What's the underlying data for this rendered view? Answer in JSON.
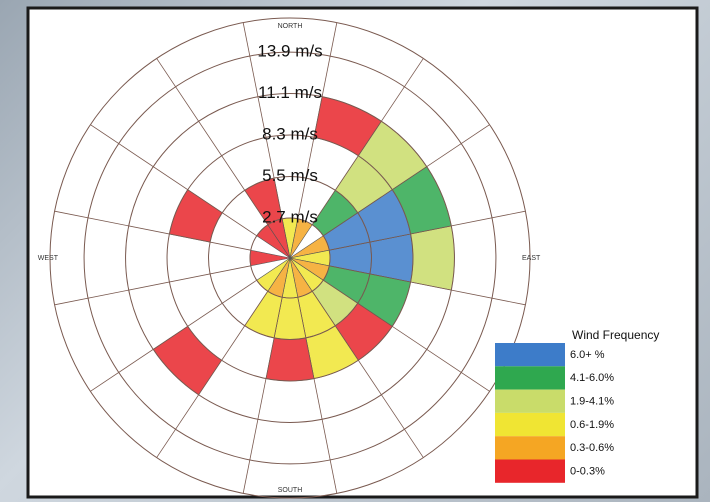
{
  "chart_data": {
    "type": "windrose",
    "rlim": [
      0,
      16.2
    ],
    "ring_ticks": [
      {
        "value": 2.7,
        "label": "2.7 m/s"
      },
      {
        "value": 5.5,
        "label": "5.5 m/s"
      },
      {
        "value": 8.3,
        "label": "8.3 m/s"
      },
      {
        "value": 11.1,
        "label": "11.1 m/s"
      },
      {
        "value": 13.9,
        "label": "13.9 m/s"
      }
    ],
    "sectors": 16,
    "directions": [
      {
        "value": 0,
        "label": "NORTH"
      },
      {
        "value": 90,
        "label": "EAST"
      },
      {
        "value": 180,
        "label": "SOUTH"
      },
      {
        "value": 270,
        "label": "WEST"
      }
    ],
    "legend": {
      "title": "Wind Frequency",
      "corner": "bottom-right"
    },
    "classes": [
      {
        "label": "6.0+ %",
        "color": "#3d7cc9"
      },
      {
        "label": "4.1-6.0%",
        "color": "#2fa84f"
      },
      {
        "label": "1.9-4.1%",
        "color": "#c9dc6a"
      },
      {
        "label": "0.6-1.9%",
        "color": "#f0e533"
      },
      {
        "label": "0.3-0.6%",
        "color": "#f5a623"
      },
      {
        "label": "0-0.3%",
        "color": "#e8262b"
      }
    ],
    "cells": [
      {
        "sector": 4,
        "ring": 1,
        "class": 0
      },
      {
        "sector": 4,
        "ring": 2,
        "class": 0
      },
      {
        "sector": 3,
        "ring": 1,
        "class": 0
      },
      {
        "sector": 3,
        "ring": 2,
        "class": 0
      },
      {
        "sector": 3,
        "ring": 3,
        "class": 1
      },
      {
        "sector": 5,
        "ring": 1,
        "class": 1
      },
      {
        "sector": 5,
        "ring": 2,
        "class": 1
      },
      {
        "sector": 2,
        "ring": 1,
        "class": 1
      },
      {
        "sector": 2,
        "ring": 2,
        "class": 2
      },
      {
        "sector": 2,
        "ring": 3,
        "class": 2
      },
      {
        "sector": 4,
        "ring": 3,
        "class": 2
      },
      {
        "sector": 1,
        "ring": 3,
        "class": 5
      },
      {
        "sector": 0,
        "ring": 0,
        "class": 3
      },
      {
        "sector": 1,
        "ring": 0,
        "class": 4
      },
      {
        "sector": 3,
        "ring": 0,
        "class": 4
      },
      {
        "sector": 4,
        "ring": 0,
        "class": 3
      },
      {
        "sector": 5,
        "ring": 0,
        "class": 4
      },
      {
        "sector": 6,
        "ring": 0,
        "class": 3
      },
      {
        "sector": 7,
        "ring": 0,
        "class": 4
      },
      {
        "sector": 8,
        "ring": 0,
        "class": 3
      },
      {
        "sector": 9,
        "ring": 0,
        "class": 4
      },
      {
        "sector": 10,
        "ring": 0,
        "class": 3
      },
      {
        "sector": 12,
        "ring": 0,
        "class": 5
      },
      {
        "sector": 14,
        "ring": 0,
        "class": 5
      },
      {
        "sector": 15,
        "ring": 0,
        "class": 5
      },
      {
        "sector": 6,
        "ring": 1,
        "class": 2
      },
      {
        "sector": 7,
        "ring": 1,
        "class": 3
      },
      {
        "sector": 7,
        "ring": 2,
        "class": 3
      },
      {
        "sector": 8,
        "ring": 1,
        "class": 3
      },
      {
        "sector": 9,
        "ring": 1,
        "class": 3
      },
      {
        "sector": 6,
        "ring": 2,
        "class": 5
      },
      {
        "sector": 8,
        "ring": 2,
        "class": 5
      },
      {
        "sector": 10,
        "ring": 3,
        "class": 5
      },
      {
        "sector": 13,
        "ring": 2,
        "class": 5
      },
      {
        "sector": 15,
        "ring": 1,
        "class": 5
      }
    ]
  }
}
